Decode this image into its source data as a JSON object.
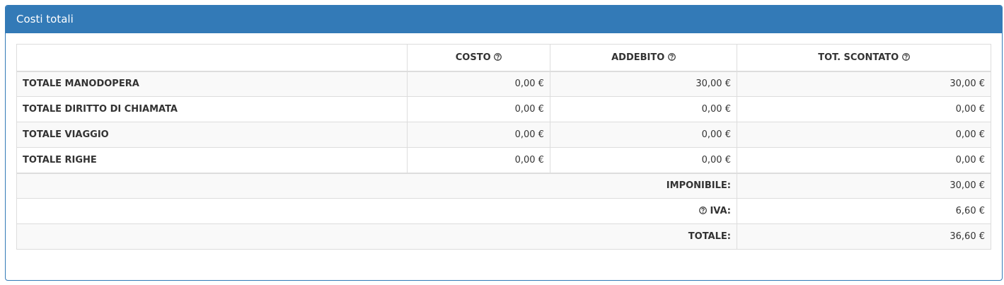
{
  "panel": {
    "title": "Costi totali"
  },
  "table": {
    "headers": [
      "COSTO",
      "ADDEBITO",
      "TOT. SCONTATO"
    ],
    "rows": [
      [
        "TOTALE MANODOPERA",
        "0,00 €",
        "30,00 €",
        "30,00 €"
      ],
      [
        "TOTALE DIRITTO DI CHIAMATA",
        "0,00 €",
        "0,00 €",
        "0,00 €"
      ],
      [
        "TOTALE VIAGGIO",
        "0,00 €",
        "0,00 €",
        "0,00 €"
      ],
      [
        "TOTALE RIGHE",
        "0,00 €",
        "0,00 €",
        "0,00 €"
      ]
    ],
    "summary": [
      {
        "label": "IMPONIBILE:",
        "value": "30,00 €"
      },
      {
        "label": "IVA:",
        "value": "6,60 €",
        "help": true
      },
      {
        "label": "TOTALE:",
        "value": "36,60 €"
      }
    ]
  }
}
